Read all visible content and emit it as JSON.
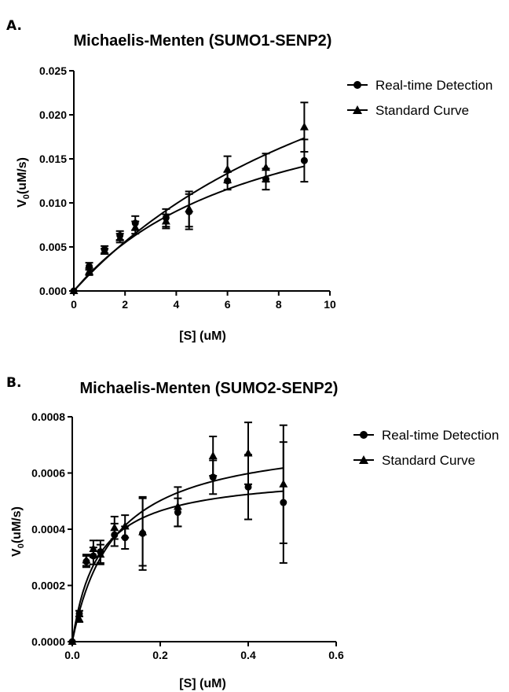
{
  "figure": {
    "panel_a_label": "A.",
    "panel_b_label": "B."
  },
  "colors": {
    "ink": "#000000",
    "background": "#ffffff"
  },
  "chart_data": [
    {
      "type": "scatter",
      "title": "Michaelis-Menten (SUMO1-SENP2)",
      "xlabel": "[S] (uM)",
      "ylabel_main": "V",
      "ylabel_sub": "0",
      "ylabel_rest": "(uM/s)",
      "xlim": [
        0,
        10
      ],
      "ylim": [
        0,
        0.025
      ],
      "xticks": [
        0,
        2,
        4,
        6,
        8,
        10
      ],
      "xtick_labels": [
        "0",
        "2",
        "4",
        "6",
        "8",
        "10"
      ],
      "yticks": [
        0,
        0.005,
        0.01,
        0.015,
        0.02,
        0.025
      ],
      "ytick_labels": [
        "0.000",
        "0.005",
        "0.010",
        "0.015",
        "0.020",
        "0.025"
      ],
      "grid": false,
      "legend_position": "top-right",
      "series": [
        {
          "name": "Real-time Detection",
          "marker": "circle",
          "x": [
            0,
            0.6,
            1.2,
            1.8,
            2.4,
            3.6,
            4.5,
            6.0,
            7.5,
            9.0
          ],
          "y": [
            0,
            0.0028,
            0.0047,
            0.0063,
            0.0077,
            0.0083,
            0.009,
            0.0125,
            0.0127,
            0.0148
          ],
          "err": [
            0,
            0.0004,
            0.0004,
            0.0005,
            0.0008,
            0.001,
            0.002,
            0.001,
            0.0012,
            0.0024
          ],
          "fit": {
            "model": "michaelis-menten",
            "vmax": 0.0258,
            "km": 7.4
          }
        },
        {
          "name": "Standard Curve",
          "marker": "triangle",
          "x": [
            0,
            0.6,
            1.2,
            1.8,
            2.4,
            3.6,
            4.5,
            6.0,
            7.5,
            9.0
          ],
          "y": [
            0,
            0.0022,
            0.0045,
            0.006,
            0.0072,
            0.0079,
            0.0093,
            0.0138,
            0.014,
            0.0186
          ],
          "err": [
            0,
            0.0004,
            0.0003,
            0.0005,
            0.0007,
            0.0008,
            0.002,
            0.0015,
            0.0016,
            0.0028
          ],
          "fit": {
            "model": "michaelis-menten",
            "vmax": 0.0436,
            "km": 13.6
          }
        }
      ]
    },
    {
      "type": "scatter",
      "title": "Michaelis-Menten (SUMO2-SENP2)",
      "xlabel": "[S] (uM)",
      "ylabel_main": "V",
      "ylabel_sub": "0",
      "ylabel_rest": "(uM/s)",
      "xlim": [
        0,
        0.6
      ],
      "ylim": [
        0,
        0.0008
      ],
      "xticks": [
        0,
        0.2,
        0.4,
        0.6
      ],
      "xtick_labels": [
        "0.0",
        "0.2",
        "0.4",
        "0.6"
      ],
      "yticks": [
        0,
        0.0002,
        0.0004,
        0.0006,
        0.0008
      ],
      "ytick_labels": [
        "0.0000",
        "0.0002",
        "0.0004",
        "0.0006",
        "0.0008"
      ],
      "grid": false,
      "legend_position": "top-right",
      "series": [
        {
          "name": "Real-time Detection",
          "marker": "circle",
          "x": [
            0,
            0.016,
            0.032,
            0.048,
            0.064,
            0.096,
            0.12,
            0.16,
            0.24,
            0.32,
            0.4,
            0.48
          ],
          "y": [
            0,
            0.0001,
            0.000285,
            0.000305,
            0.00032,
            0.00038,
            0.00037,
            0.000385,
            0.00046,
            0.000585,
            0.00055,
            0.000495
          ],
          "err": [
            0,
            1e-05,
            2e-05,
            3e-05,
            4e-05,
            4e-05,
            4e-05,
            0.00013,
            5e-05,
            6e-05,
            0.000115,
            0.000215
          ],
          "fit": {
            "model": "michaelis-menten",
            "vmax": 0.0006,
            "km": 0.058
          }
        },
        {
          "name": "Standard Curve",
          "marker": "triangle",
          "x": [
            0,
            0.016,
            0.032,
            0.048,
            0.064,
            0.096,
            0.12,
            0.16,
            0.24,
            0.32,
            0.4,
            0.48
          ],
          "y": [
            0,
            8e-05,
            0.00029,
            0.00033,
            0.00031,
            0.000405,
            0.00041,
            0.00039,
            0.00048,
            0.00066,
            0.00067,
            0.00056
          ],
          "err": [
            0,
            1e-05,
            2e-05,
            3e-05,
            3.5e-05,
            4e-05,
            4e-05,
            0.00012,
            7e-05,
            7e-05,
            0.00011,
            0.00021
          ],
          "fit": {
            "model": "michaelis-menten",
            "vmax": 0.00074,
            "km": 0.095
          }
        }
      ]
    }
  ]
}
